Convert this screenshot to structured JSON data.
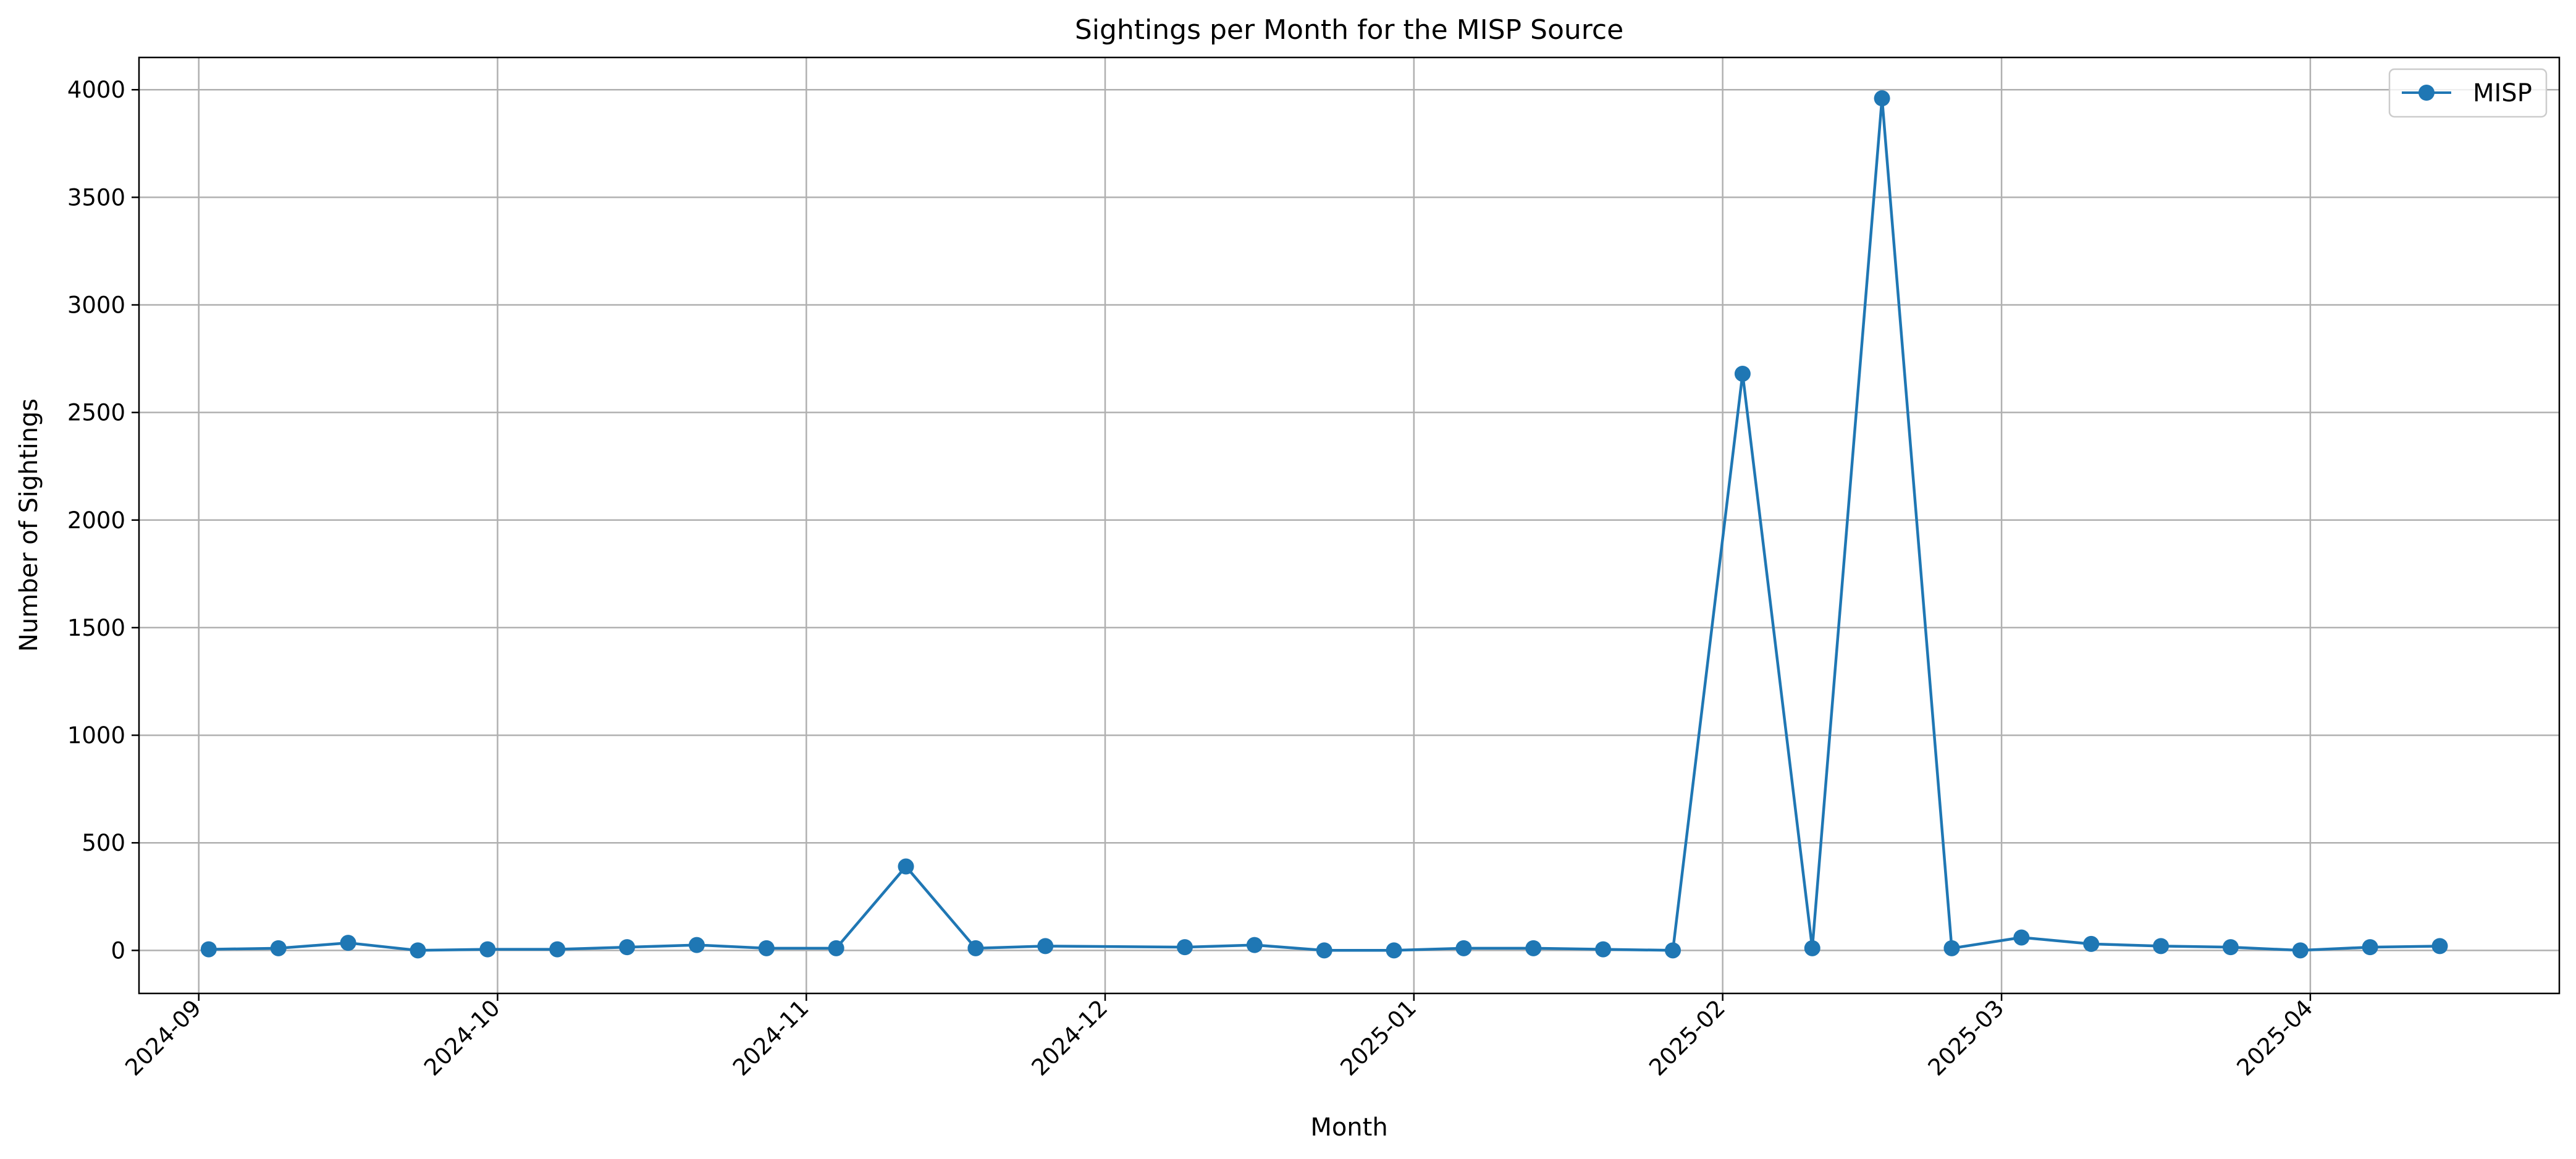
{
  "chart_data": {
    "type": "line",
    "title": "Sightings per Month for the MISP Source",
    "xlabel": "Month",
    "ylabel": "Number of Sightings",
    "x_tick_labels": [
      "2024-09",
      "2024-10",
      "2024-11",
      "2024-12",
      "2025-01",
      "2025-02",
      "2025-03",
      "2025-04"
    ],
    "y_tick_labels": [
      "0",
      "500",
      "1000",
      "1500",
      "2000",
      "2500",
      "3000",
      "3500",
      "4000"
    ],
    "ylim": [
      -200,
      4150
    ],
    "xlim": [
      "2024-08-26",
      "2025-04-26"
    ],
    "grid": true,
    "legend_position": "top-right",
    "series": [
      {
        "name": "MISP",
        "color": "#1f77b4",
        "marker": "circle",
        "x": [
          "2024-09-02",
          "2024-09-09",
          "2024-09-16",
          "2024-09-23",
          "2024-09-30",
          "2024-10-07",
          "2024-10-14",
          "2024-10-21",
          "2024-10-28",
          "2024-11-04",
          "2024-11-11",
          "2024-11-18",
          "2024-11-25",
          "2024-12-09",
          "2024-12-16",
          "2024-12-23",
          "2024-12-30",
          "2025-01-06",
          "2025-01-13",
          "2025-01-20",
          "2025-01-27",
          "2025-02-03",
          "2025-02-10",
          "2025-02-17",
          "2025-02-24",
          "2025-03-03",
          "2025-03-10",
          "2025-03-17",
          "2025-03-24",
          "2025-03-31",
          "2025-04-07",
          "2025-04-14"
        ],
        "y": [
          5,
          10,
          35,
          0,
          5,
          5,
          15,
          25,
          10,
          10,
          390,
          10,
          20,
          15,
          25,
          0,
          0,
          10,
          10,
          5,
          0,
          2680,
          10,
          3960,
          10,
          60,
          30,
          20,
          15,
          0,
          15,
          20
        ]
      }
    ]
  }
}
